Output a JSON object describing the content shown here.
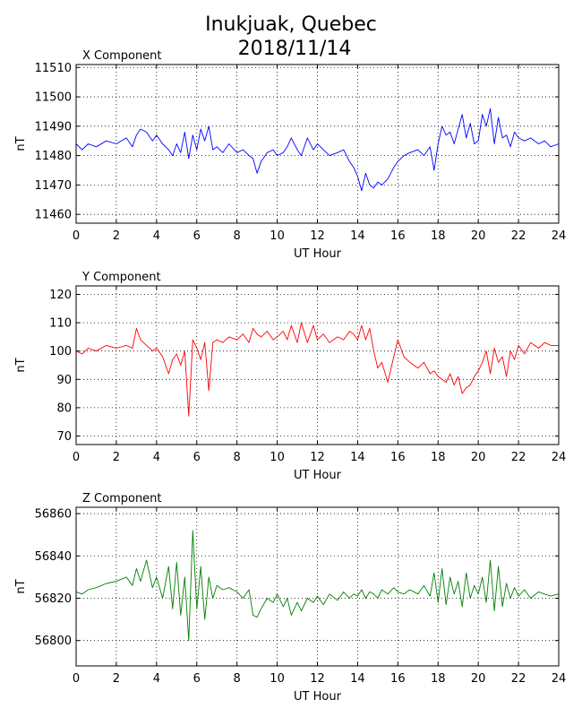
{
  "figure": {
    "title_line1": "Inukjuak, Quebec",
    "title_line2": "2018/11/14"
  },
  "chart_data": [
    {
      "type": "line",
      "title": "X Component",
      "xlabel": "UT Hour",
      "ylabel": "nT",
      "xlim": [
        0,
        24
      ],
      "ylim": [
        11457,
        11511
      ],
      "xticks": [
        0,
        2,
        4,
        6,
        8,
        10,
        12,
        14,
        16,
        18,
        20,
        22,
        24
      ],
      "yticks": [
        11460,
        11470,
        11480,
        11490,
        11500,
        11510
      ],
      "grid": true,
      "color": "#0000ff",
      "series": [
        {
          "x": [
            0,
            0.3,
            0.6,
            1,
            1.5,
            2,
            2.5,
            2.8,
            3,
            3.2,
            3.5,
            3.8,
            4,
            4.3,
            4.6,
            4.8,
            5,
            5.2,
            5.4,
            5.6,
            5.8,
            6,
            6.2,
            6.4,
            6.6,
            6.8,
            7,
            7.3,
            7.6,
            8,
            8.3,
            8.6,
            8.8,
            9,
            9.2,
            9.5,
            9.8,
            10,
            10.3,
            10.5,
            10.7,
            11,
            11.2,
            11.5,
            11.8,
            12,
            12.3,
            12.6,
            13,
            13.3,
            13.6,
            13.8,
            14,
            14.2,
            14.4,
            14.6,
            14.8,
            15,
            15.2,
            15.5,
            15.8,
            16,
            16.3,
            16.6,
            17,
            17.3,
            17.6,
            17.8,
            18,
            18.2,
            18.4,
            18.6,
            18.8,
            19,
            19.2,
            19.4,
            19.6,
            19.8,
            20,
            20.2,
            20.4,
            20.6,
            20.8,
            21,
            21.2,
            21.4,
            21.6,
            21.8,
            22,
            22.3,
            22.6,
            23,
            23.3,
            23.6,
            24
          ],
          "y": [
            11484,
            11482,
            11484,
            11483,
            11485,
            11484,
            11486,
            11483,
            11487,
            11489,
            11488,
            11485,
            11487,
            11484,
            11482,
            11480,
            11484,
            11481,
            11488,
            11479,
            11487,
            11482,
            11489,
            11485,
            11490,
            11482,
            11483,
            11481,
            11484,
            11481,
            11482,
            11480,
            11479,
            11474,
            11478,
            11481,
            11482,
            11480,
            11481,
            11483,
            11486,
            11482,
            11480,
            11486,
            11482,
            11484,
            11482,
            11480,
            11481,
            11482,
            11478,
            11476,
            11473,
            11468,
            11474,
            11470,
            11469,
            11471,
            11470,
            11472,
            11476,
            11478,
            11480,
            11481,
            11482,
            11480,
            11483,
            11475,
            11484,
            11490,
            11487,
            11488,
            11484,
            11489,
            11494,
            11486,
            11491,
            11484,
            11485,
            11494,
            11490,
            11496,
            11484,
            11493,
            11486,
            11487,
            11483,
            11488,
            11486,
            11485,
            11486,
            11484,
            11485,
            11483,
            11484
          ]
        }
      ]
    },
    {
      "type": "line",
      "title": "Y Component",
      "xlabel": "UT Hour",
      "ylabel": "nT",
      "xlim": [
        0,
        24
      ],
      "ylim": [
        67,
        123
      ],
      "xticks": [
        0,
        2,
        4,
        6,
        8,
        10,
        12,
        14,
        16,
        18,
        20,
        22,
        24
      ],
      "yticks": [
        70,
        80,
        90,
        100,
        110,
        120
      ],
      "grid": true,
      "color": "#ff0000",
      "series": [
        {
          "x": [
            0,
            0.3,
            0.6,
            1,
            1.5,
            2,
            2.5,
            2.8,
            3,
            3.2,
            3.5,
            3.8,
            4,
            4.3,
            4.6,
            4.8,
            5,
            5.2,
            5.4,
            5.6,
            5.8,
            6,
            6.2,
            6.4,
            6.6,
            6.8,
            7,
            7.3,
            7.6,
            8,
            8.3,
            8.6,
            8.8,
            9,
            9.2,
            9.5,
            9.8,
            10,
            10.3,
            10.5,
            10.7,
            11,
            11.2,
            11.5,
            11.8,
            12,
            12.3,
            12.6,
            13,
            13.3,
            13.6,
            13.8,
            14,
            14.2,
            14.4,
            14.6,
            14.8,
            15,
            15.2,
            15.5,
            15.8,
            16,
            16.3,
            16.6,
            17,
            17.3,
            17.6,
            17.8,
            18,
            18.2,
            18.4,
            18.6,
            18.8,
            19,
            19.2,
            19.4,
            19.6,
            19.8,
            20,
            20.2,
            20.4,
            20.6,
            20.8,
            21,
            21.2,
            21.4,
            21.6,
            21.8,
            22,
            22.3,
            22.6,
            23,
            23.3,
            23.6,
            24
          ],
          "y": [
            100,
            99,
            101,
            100,
            102,
            101,
            102,
            101,
            108,
            104,
            102,
            100,
            101,
            98,
            92,
            97,
            99,
            95,
            100,
            77,
            104,
            101,
            97,
            103,
            86,
            103,
            104,
            103,
            105,
            104,
            106,
            103,
            108,
            106,
            105,
            107,
            104,
            105,
            107,
            104,
            109,
            103,
            110,
            103,
            109,
            104,
            106,
            103,
            105,
            104,
            107,
            106,
            104,
            109,
            104,
            108,
            100,
            94,
            96,
            89,
            98,
            104,
            98,
            96,
            94,
            96,
            92,
            93,
            91,
            90,
            89,
            92,
            88,
            91,
            85,
            87,
            88,
            91,
            93,
            96,
            100,
            92,
            101,
            96,
            98,
            91,
            100,
            97,
            102,
            99,
            103,
            101,
            103,
            102,
            102
          ]
        }
      ]
    },
    {
      "type": "line",
      "title": "Z Component",
      "xlabel": "UT Hour",
      "ylabel": "nT",
      "xlim": [
        0,
        24
      ],
      "ylim": [
        56788,
        56863
      ],
      "xticks": [
        0,
        2,
        4,
        6,
        8,
        10,
        12,
        14,
        16,
        18,
        20,
        22,
        24
      ],
      "yticks": [
        56800,
        56820,
        56840,
        56860
      ],
      "grid": true,
      "color": "#008000",
      "series": [
        {
          "x": [
            0,
            0.3,
            0.6,
            1,
            1.5,
            2,
            2.5,
            2.8,
            3,
            3.2,
            3.5,
            3.8,
            4,
            4.3,
            4.6,
            4.8,
            5,
            5.2,
            5.4,
            5.6,
            5.8,
            6,
            6.2,
            6.4,
            6.6,
            6.8,
            7,
            7.3,
            7.6,
            8,
            8.3,
            8.6,
            8.8,
            9,
            9.2,
            9.5,
            9.8,
            10,
            10.3,
            10.5,
            10.7,
            11,
            11.2,
            11.5,
            11.8,
            12,
            12.3,
            12.6,
            13,
            13.3,
            13.6,
            13.8,
            14,
            14.2,
            14.4,
            14.6,
            14.8,
            15,
            15.2,
            15.5,
            15.8,
            16,
            16.3,
            16.6,
            17,
            17.3,
            17.6,
            17.8,
            18,
            18.2,
            18.4,
            18.6,
            18.8,
            19,
            19.2,
            19.4,
            19.6,
            19.8,
            20,
            20.2,
            20.4,
            20.6,
            20.8,
            21,
            21.2,
            21.4,
            21.6,
            21.8,
            22,
            22.3,
            22.6,
            23,
            23.3,
            23.6,
            24
          ],
          "y": [
            56823,
            56822,
            56824,
            56825,
            56827,
            56828,
            56830,
            56826,
            56834,
            56828,
            56838,
            56825,
            56830,
            56820,
            56835,
            56815,
            56837,
            56812,
            56830,
            56800,
            56852,
            56815,
            56835,
            56810,
            56830,
            56820,
            56826,
            56824,
            56825,
            56823,
            56820,
            56824,
            56812,
            56811,
            56815,
            56820,
            56818,
            56822,
            56816,
            56820,
            56812,
            56818,
            56814,
            56820,
            56818,
            56821,
            56817,
            56822,
            56819,
            56823,
            56820,
            56822,
            56821,
            56824,
            56820,
            56823,
            56822,
            56820,
            56824,
            56822,
            56825,
            56823,
            56822,
            56824,
            56822,
            56826,
            56821,
            56832,
            56818,
            56834,
            56817,
            56830,
            56822,
            56828,
            56816,
            56832,
            56820,
            56826,
            56822,
            56830,
            56818,
            56838,
            56814,
            56835,
            56816,
            56827,
            56820,
            56825,
            56821,
            56824,
            56820,
            56823,
            56822,
            56821,
            56822
          ]
        }
      ]
    }
  ]
}
